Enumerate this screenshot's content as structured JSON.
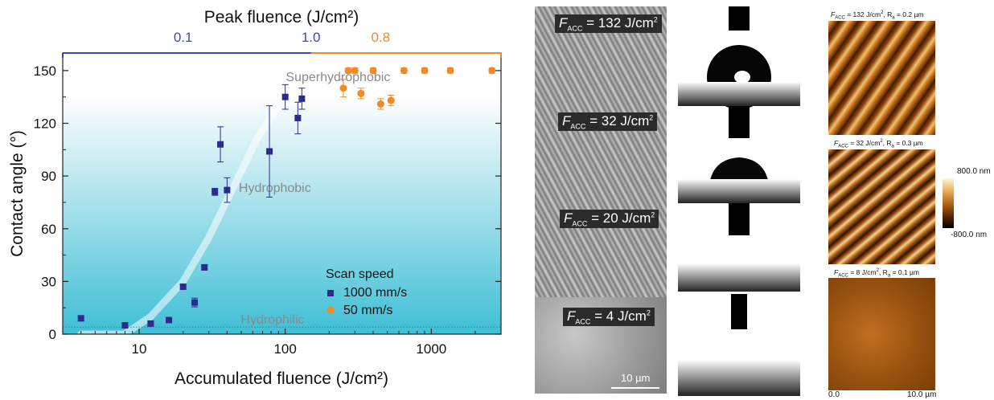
{
  "chart_data": {
    "type": "scatter",
    "xlabel": "Accumulated fluence (J/cm²)",
    "ylabel": "Contact angle (°)",
    "top_axis_label": "Peak fluence (J/cm²)",
    "x_scale": "log",
    "xlim": [
      3,
      3000
    ],
    "ylim": [
      0,
      160
    ],
    "x_ticks": [
      10,
      100,
      1000
    ],
    "y_ticks": [
      0,
      30,
      60,
      90,
      120,
      150
    ],
    "top_ticks_blue": [
      {
        "label": "0.1",
        "at": 20
      },
      {
        "label": "1.0",
        "at": 150
      }
    ],
    "top_ticks_orange": [
      {
        "label": "0.8",
        "at": 450
      }
    ],
    "legend_title": "Scan speed",
    "legend_position": "lower-right",
    "series": [
      {
        "name": "1000 mm/s",
        "color": "#2b2b8c",
        "marker": "square",
        "points": [
          [
            4,
            9,
            1.5
          ],
          [
            8,
            5,
            1.5
          ],
          [
            12,
            6,
            1.5
          ],
          [
            16,
            8,
            1.5
          ],
          [
            20,
            27,
            1.5
          ],
          [
            24,
            18,
            2.5
          ],
          [
            28,
            38,
            1.5
          ],
          [
            33,
            81,
            2
          ],
          [
            36,
            108,
            10
          ],
          [
            40,
            82,
            7
          ],
          [
            78,
            104,
            26
          ],
          [
            100,
            135,
            7
          ],
          [
            122,
            123,
            9
          ],
          [
            130,
            134,
            6
          ]
        ]
      },
      {
        "name": "50 mm/s",
        "color": "#f08a24",
        "marker": "circle",
        "points": [
          [
            250,
            140,
            5
          ],
          [
            270,
            150,
            1.5
          ],
          [
            300,
            150,
            1.5
          ],
          [
            330,
            137,
            3
          ],
          [
            400,
            150,
            1.5
          ],
          [
            450,
            131,
            3
          ],
          [
            530,
            133,
            3
          ],
          [
            650,
            150,
            1.5
          ],
          [
            900,
            150,
            1.5
          ],
          [
            1350,
            150,
            1.5
          ],
          [
            2600,
            150,
            1.5
          ]
        ]
      }
    ],
    "annotations": [
      {
        "text": "Superhydrophobic",
        "x": 230,
        "y": 144
      },
      {
        "text": "Hydrophobic",
        "x": 85,
        "y": 81
      },
      {
        "text": "Hydrophilic",
        "x": 82,
        "y": 6
      }
    ],
    "trend_line": [
      [
        4,
        -10
      ],
      [
        8,
        -2
      ],
      [
        12,
        10
      ],
      [
        20,
        30
      ],
      [
        30,
        55
      ],
      [
        45,
        85
      ],
      [
        65,
        112
      ],
      [
        90,
        130
      ],
      [
        140,
        142
      ],
      [
        250,
        146
      ],
      [
        600,
        147
      ],
      [
        3000,
        147
      ]
    ],
    "hydrophilic_level": 4
  },
  "colors": {
    "blue_axis": "#3a4ab0",
    "orange_axis": "#f08a24",
    "background_gradient": [
      "#ffffff",
      "#3fbfd6"
    ]
  },
  "sem_labels": [
    {
      "sym": "F",
      "sub": "ACC",
      "text": " = 132 J/cm",
      "sup": "2"
    },
    {
      "sym": "F",
      "sub": "ACC",
      "text": " = 32 J/cm",
      "sup": "2"
    },
    {
      "sym": "F",
      "sub": "ACC",
      "text": " = 20 J/cm",
      "sup": "2"
    },
    {
      "sym": "F",
      "sub": "ACC",
      "text": " = 4 J/cm",
      "sup": "2"
    }
  ],
  "sem_scalebar": "10 µm",
  "afm_titles": [
    {
      "sym": "F",
      "sub": "ACC",
      "text": " = 132 J/cm",
      "sup": "2",
      "tail": ", R",
      "tsub": "a",
      "tend": " = 0.2 µm"
    },
    {
      "sym": "F",
      "sub": "ACC",
      "text": " = 32 J/cm",
      "sup": "2",
      "tail": ", R",
      "tsub": "a",
      "tend": " = 0.3 µm"
    },
    {
      "sym": "F",
      "sub": "ACC",
      "text": " = 8 J/cm",
      "sup": "2",
      "tail": ", R",
      "tsub": "a",
      "tend": " = 0.1 µm"
    }
  ],
  "colorbar": {
    "max_label": "800.0 nm",
    "min_label": "-800.0 nm"
  },
  "afm_axis": {
    "start": "0.0",
    "end": "10.0 µm"
  }
}
